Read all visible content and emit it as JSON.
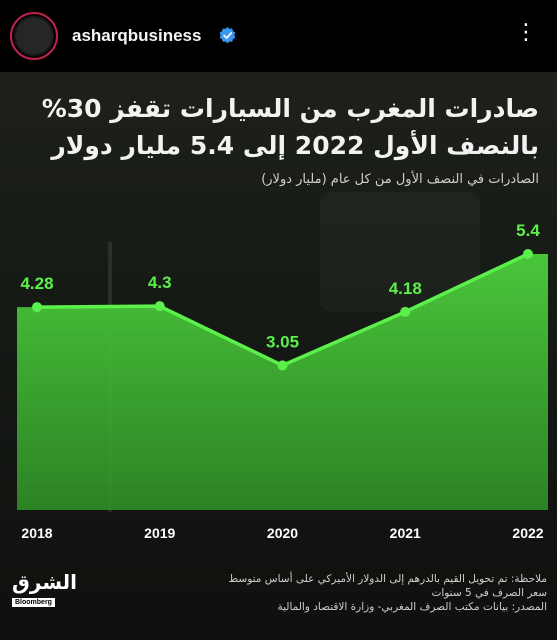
{
  "header": {
    "username": "asharqbusiness",
    "more_icon": "more-dots-icon"
  },
  "post": {
    "title_line1": "صادرات المغرب من السيارات تقفز 30%",
    "title_line2": "بالنصف الأول 2022 إلى 5.4 مليار دولار",
    "subtitle": "الصادرات في النصف الأول من كل عام (مليار دولار)",
    "note_line1": "ملاحظة: تم تحويل القيم بالدرهم إلى الدولار الأميركي على أساس متوسط",
    "note_line2": "سعر الصرف في 5 سنوات",
    "source": "المصدر: بيانات مكتب الصرف المغربي- وزارة الاقتصاد والمالية",
    "logo_text": "الشرق",
    "logo_sub": "Bloomberg"
  },
  "chart_data": {
    "type": "area",
    "categories": [
      "2018",
      "2019",
      "2020",
      "2021",
      "2022"
    ],
    "values": [
      4.28,
      4.3,
      3.05,
      4.18,
      5.4
    ],
    "data_labels": [
      "4.28",
      "4.3",
      "3.05",
      "4.18",
      "5.4"
    ],
    "title": "صادرات المغرب من السيارات تقفز 30% بالنصف الأول 2022 إلى 5.4 مليار دولار",
    "subtitle": "الصادرات في النصف الأول من كل عام (مليار دولار)",
    "ylim": [
      0,
      6
    ],
    "grid": false,
    "colors": {
      "line": "#5cf04a",
      "fill": "#3fae32"
    }
  },
  "colors": {
    "verified": "#3897f0",
    "avatar_ring": "#c0224a",
    "background": "#000000"
  }
}
